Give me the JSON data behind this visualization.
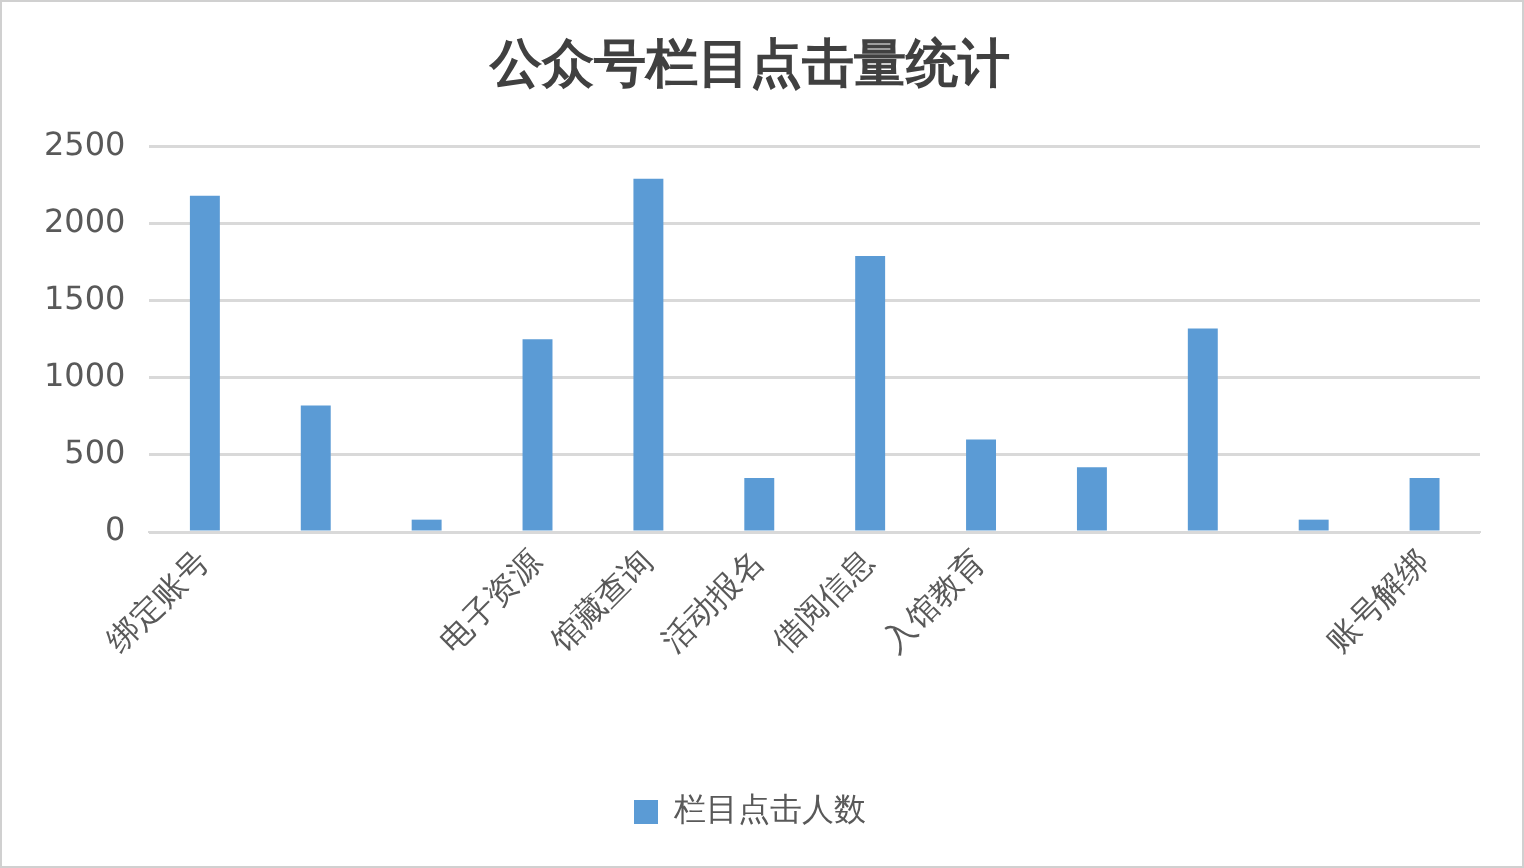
{
  "chart_data": {
    "type": "bar",
    "title": "公众号栏目点击量统计",
    "categories": [
      "绑定账号",
      null,
      null,
      "电子资源",
      "馆藏查询",
      "活动报名",
      "借阅信息",
      "入馆教育",
      null,
      null,
      null,
      "账号解绑"
    ],
    "series": [
      {
        "name": "栏目点击人数",
        "color": "#5b9bd5",
        "values": [
          2180,
          820,
          80,
          1250,
          2290,
          350,
          1790,
          600,
          420,
          1320,
          80,
          350
        ]
      }
    ],
    "ylim": [
      0,
      2500
    ],
    "yticks": [
      0,
      500,
      1000,
      1500,
      2000,
      2500
    ],
    "grid": "y",
    "legend": "bottom"
  }
}
